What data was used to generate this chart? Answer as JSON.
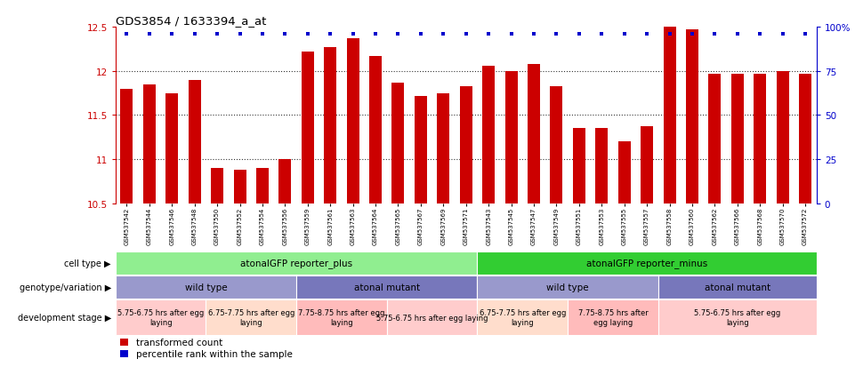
{
  "title": "GDS3854 / 1633394_a_at",
  "samples": [
    "GSM537542",
    "GSM537544",
    "GSM537546",
    "GSM537548",
    "GSM537550",
    "GSM537552",
    "GSM537554",
    "GSM537556",
    "GSM537559",
    "GSM537561",
    "GSM537563",
    "GSM537564",
    "GSM537565",
    "GSM537567",
    "GSM537569",
    "GSM537571",
    "GSM537543",
    "GSM537545",
    "GSM537547",
    "GSM537549",
    "GSM537551",
    "GSM537553",
    "GSM537555",
    "GSM537557",
    "GSM537558",
    "GSM537560",
    "GSM537562",
    "GSM537566",
    "GSM537568",
    "GSM537570",
    "GSM537572"
  ],
  "bar_values": [
    11.8,
    11.85,
    11.75,
    11.9,
    10.9,
    10.88,
    10.9,
    11.0,
    12.22,
    12.27,
    12.37,
    12.17,
    11.87,
    11.72,
    11.75,
    11.83,
    12.06,
    12.0,
    12.08,
    11.83,
    11.35,
    11.35,
    11.2,
    11.37,
    12.5,
    12.47,
    11.97,
    11.97,
    11.97,
    12.0,
    11.97
  ],
  "percentile_show": [
    1,
    1,
    1,
    1,
    1,
    1,
    1,
    1,
    1,
    1,
    1,
    1,
    1,
    1,
    1,
    1,
    1,
    1,
    1,
    1,
    1,
    1,
    1,
    1,
    1,
    1,
    1,
    1,
    1,
    1,
    1
  ],
  "ymin": 10.5,
  "ymax": 12.5,
  "yticks": [
    10.5,
    11.0,
    11.5,
    12.0,
    12.5
  ],
  "ytick_labels": [
    "10.5",
    "11",
    "11.5",
    "12",
    "12.5"
  ],
  "dotted_lines": [
    11.0,
    11.5,
    12.0
  ],
  "bar_color": "#cc0000",
  "percentile_color": "#0000cc",
  "cell_type_blocks": [
    {
      "label": "atonalGFP reporter_plus",
      "start": 0,
      "end": 16,
      "color": "#90EE90"
    },
    {
      "label": "atonalGFP reporter_minus",
      "start": 16,
      "end": 31,
      "color": "#32CD32"
    }
  ],
  "genotype_blocks": [
    {
      "label": "wild type",
      "start": 0,
      "end": 8,
      "color": "#9999cc"
    },
    {
      "label": "atonal mutant",
      "start": 8,
      "end": 16,
      "color": "#7777bb"
    },
    {
      "label": "wild type",
      "start": 16,
      "end": 24,
      "color": "#9999cc"
    },
    {
      "label": "atonal mutant",
      "start": 24,
      "end": 31,
      "color": "#7777bb"
    }
  ],
  "dev_stage_blocks": [
    {
      "label": "5.75-6.75 hrs after egg\nlaying",
      "start": 0,
      "end": 4,
      "color": "#ffcccc"
    },
    {
      "label": "6.75-7.75 hrs after egg\nlaying",
      "start": 4,
      "end": 8,
      "color": "#ffddcc"
    },
    {
      "label": "7.75-8.75 hrs after egg\nlaying",
      "start": 8,
      "end": 12,
      "color": "#ffbbbb"
    },
    {
      "label": "5.75-6.75 hrs after egg laying",
      "start": 12,
      "end": 16,
      "color": "#ffcccc"
    },
    {
      "label": "6.75-7.75 hrs after egg\nlaying",
      "start": 16,
      "end": 20,
      "color": "#ffddcc"
    },
    {
      "label": "7.75-8.75 hrs after\negg laying",
      "start": 20,
      "end": 24,
      "color": "#ffbbbb"
    },
    {
      "label": "5.75-6.75 hrs after egg\nlaying",
      "start": 24,
      "end": 31,
      "color": "#ffcccc"
    }
  ],
  "row_labels": [
    "cell type",
    "genotype/variation",
    "development stage"
  ],
  "legend_labels": [
    "transformed count",
    "percentile rank within the sample"
  ]
}
